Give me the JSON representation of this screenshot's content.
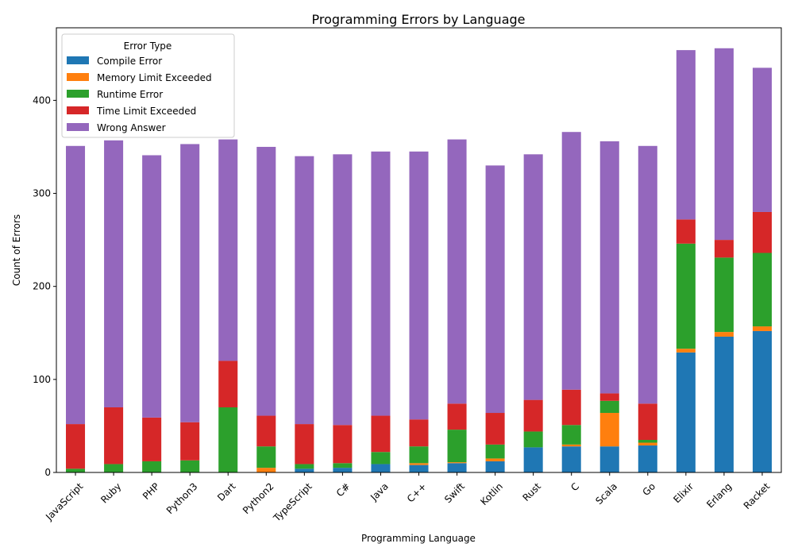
{
  "chart_data": {
    "type": "bar",
    "stacked": true,
    "title": "Programming Errors by Language",
    "xlabel": "Programming Language",
    "ylabel": "Count of Errors",
    "ylim": [
      0,
      478
    ],
    "yticks": [
      0,
      100,
      200,
      300,
      400
    ],
    "grid": false,
    "legend": {
      "title": "Error Type",
      "placement": "top-left"
    },
    "categories": [
      "JavaScript",
      "Ruby",
      "PHP",
      "Python3",
      "Dart",
      "Python2",
      "TypeScript",
      "C#",
      "Java",
      "C++",
      "Swift",
      "Kotlin",
      "Rust",
      "C",
      "Scala",
      "Go",
      "Elixir",
      "Erlang",
      "Racket"
    ],
    "series": [
      {
        "name": "Compile Error",
        "color": "#1f77b4",
        "values": [
          0,
          0,
          0,
          0,
          0,
          0,
          4,
          5,
          9,
          8,
          10,
          12,
          27,
          28,
          28,
          29,
          129,
          146,
          152
        ]
      },
      {
        "name": "Memory Limit Exceeded",
        "color": "#ff7f0e",
        "values": [
          0,
          0,
          0,
          0,
          0,
          5,
          0,
          0,
          0,
          2,
          1,
          3,
          0,
          2,
          36,
          3,
          4,
          5,
          5
        ]
      },
      {
        "name": "Runtime Error",
        "color": "#2ca02c",
        "values": [
          4,
          9,
          12,
          13,
          70,
          23,
          5,
          5,
          13,
          18,
          35,
          15,
          17,
          21,
          13,
          3,
          113,
          80,
          79
        ]
      },
      {
        "name": "Time Limit Exceeded",
        "color": "#d62728",
        "values": [
          48,
          61,
          47,
          41,
          50,
          33,
          43,
          41,
          39,
          29,
          28,
          34,
          34,
          38,
          8,
          39,
          26,
          19,
          44
        ]
      },
      {
        "name": "Wrong Answer",
        "color": "#9467bd",
        "values": [
          299,
          287,
          282,
          299,
          238,
          289,
          288,
          291,
          284,
          288,
          284,
          266,
          264,
          277,
          271,
          277,
          182,
          206,
          155
        ]
      }
    ]
  }
}
